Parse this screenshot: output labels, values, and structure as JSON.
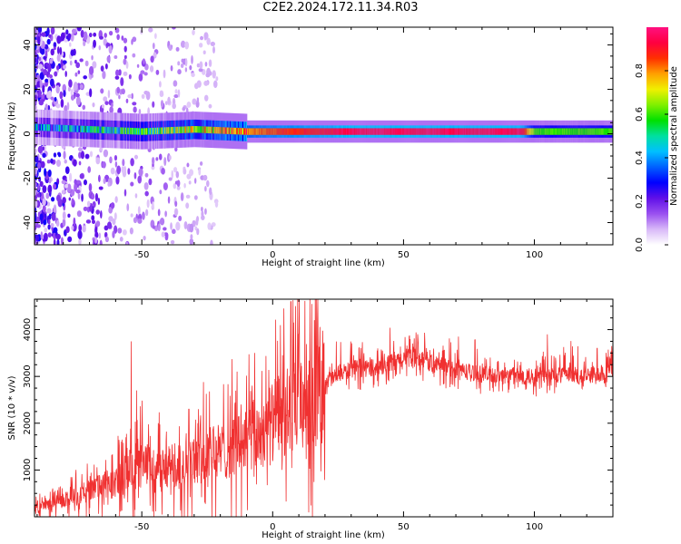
{
  "title": "C2E2.2024.172.11.34.R03",
  "chart_data": [
    {
      "type": "heatmap",
      "xlabel": "Height of straight line (km)",
      "ylabel": "Frequency (Hz)",
      "xlim": [
        -91,
        130
      ],
      "ylim": [
        -50,
        48
      ],
      "xticks": [
        -50,
        0,
        50,
        100
      ],
      "yticks": [
        -40,
        -20,
        0,
        20,
        40
      ],
      "colorbar": {
        "label": "Normalized spectral amplitude",
        "range": [
          0,
          1
        ],
        "ticks": [
          "0.0",
          "0.2",
          "0.4",
          "0.6",
          "0.8"
        ],
        "colors": [
          "#ffffff",
          "#d8b8f8",
          "#9a50f0",
          "#6010e8",
          "#0000ff",
          "#0060ff",
          "#00c0ff",
          "#00e0a0",
          "#00e000",
          "#80f000",
          "#f0f000",
          "#ffa000",
          "#ff3000",
          "#ff0040",
          "#ff1080"
        ]
      },
      "band": {
        "center_hz": [
          [
            -91,
            3
          ],
          [
            -50,
            1
          ],
          [
            -30,
            2
          ],
          [
            -10,
            1
          ],
          [
            0,
            1
          ],
          [
            30,
            1
          ],
          [
            100,
            1
          ],
          [
            130,
            1
          ]
        ],
        "peak_amplitude": [
          [
            -91,
            0.35
          ],
          [
            -70,
            0.45
          ],
          [
            -50,
            0.55
          ],
          [
            -20,
            0.75
          ],
          [
            0,
            0.85
          ],
          [
            30,
            0.95
          ],
          [
            95,
            0.95
          ],
          [
            100,
            0.6
          ],
          [
            130,
            0.6
          ]
        ]
      }
    },
    {
      "type": "line",
      "xlabel": "Height of straight line (km)",
      "ylabel": "SNR (10 * v/v)",
      "xlim": [
        -91,
        130
      ],
      "ylim": [
        0,
        4650
      ],
      "xticks": [
        -50,
        0,
        50,
        100
      ],
      "yticks": [
        1000,
        2000,
        3000,
        4000
      ],
      "color": "#f03030",
      "trend": [
        [
          -91,
          200
        ],
        [
          -80,
          350
        ],
        [
          -70,
          550
        ],
        [
          -60,
          750
        ],
        [
          -50,
          1100
        ],
        [
          -40,
          1000
        ],
        [
          -30,
          1200
        ],
        [
          -20,
          1400
        ],
        [
          -10,
          1600
        ],
        [
          0,
          2000
        ],
        [
          10,
          2400
        ],
        [
          20,
          2900
        ],
        [
          30,
          3150
        ],
        [
          40,
          3200
        ],
        [
          50,
          3350
        ],
        [
          55,
          3450
        ],
        [
          60,
          3300
        ],
        [
          70,
          3150
        ],
        [
          80,
          3050
        ],
        [
          90,
          3000
        ],
        [
          100,
          3000
        ],
        [
          110,
          3050
        ],
        [
          120,
          3000
        ],
        [
          130,
          3150
        ]
      ],
      "spikes": [
        [
          -54,
          3750
        ],
        [
          -52,
          2700
        ],
        [
          7,
          4600
        ],
        [
          15,
          4550
        ],
        [
          10,
          3900
        ],
        [
          -32,
          2300
        ],
        [
          -12,
          2400
        ],
        [
          105,
          3900
        ],
        [
          124,
          3600
        ]
      ]
    }
  ]
}
